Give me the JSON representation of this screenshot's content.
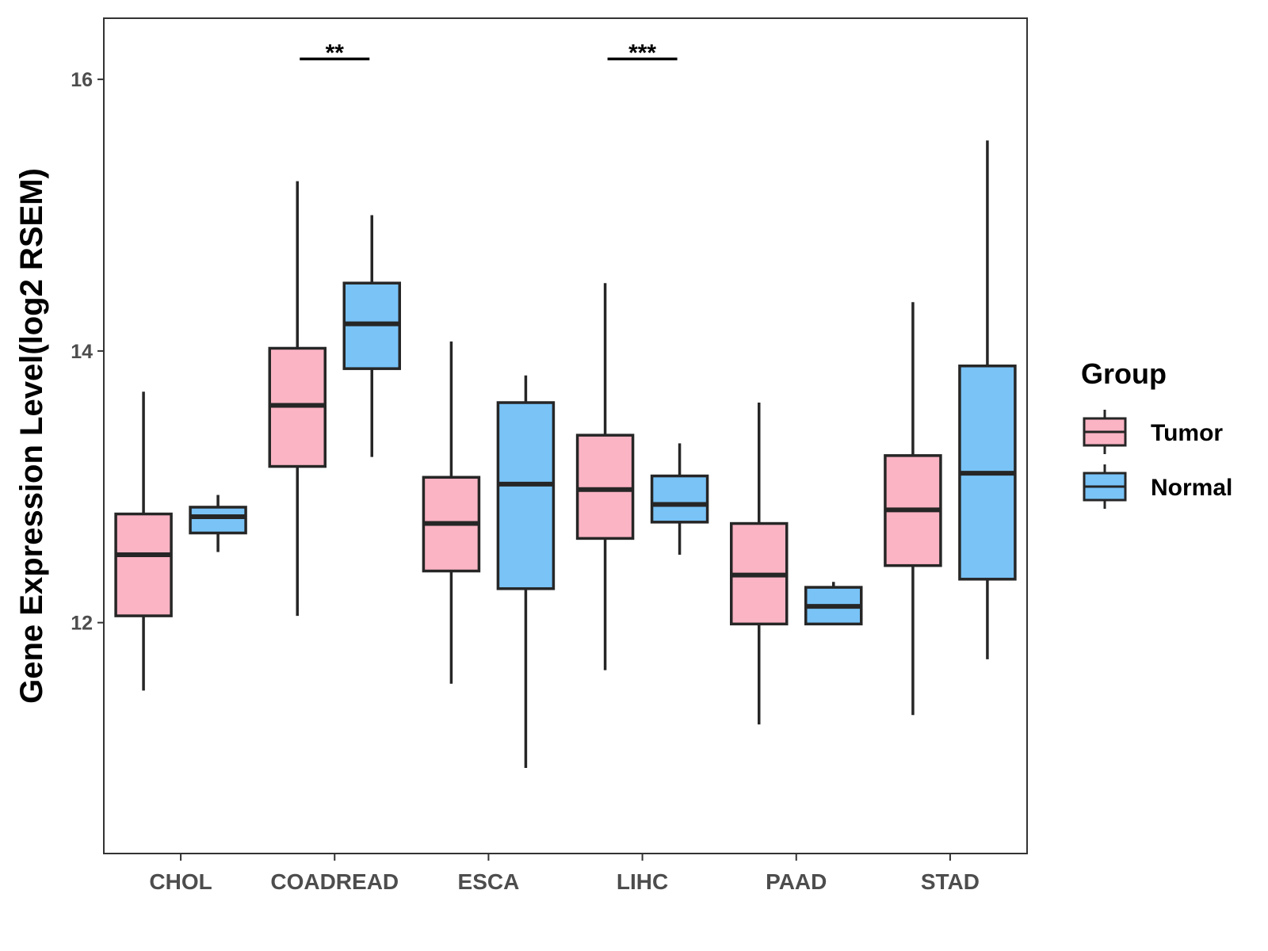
{
  "chart_data": {
    "type": "boxplot",
    "title": "",
    "xlabel": "",
    "ylabel": "Gene Expression Level(log2 RSEM)",
    "ylim": [
      10.3,
      16.45
    ],
    "yticks": [
      12,
      14,
      16
    ],
    "grid": false,
    "categories": [
      "CHOL",
      "COADREAD",
      "ESCA",
      "LIHC",
      "PAAD",
      "STAD"
    ],
    "legend": {
      "title": "Group",
      "position": "right",
      "entries": [
        {
          "name": "Tumor",
          "color": "#fbb4c4"
        },
        {
          "name": "Normal",
          "color": "#79c3f7"
        }
      ]
    },
    "series": [
      {
        "name": "Tumor",
        "color": "#fbb4c4",
        "boxes": [
          {
            "min": 11.5,
            "q1": 12.05,
            "median": 12.5,
            "q3": 12.8,
            "max": 13.7
          },
          {
            "min": 12.05,
            "q1": 13.15,
            "median": 13.6,
            "q3": 14.02,
            "max": 15.25
          },
          {
            "min": 11.55,
            "q1": 12.38,
            "median": 12.73,
            "q3": 13.07,
            "max": 14.07
          },
          {
            "min": 11.65,
            "q1": 12.62,
            "median": 12.98,
            "q3": 13.38,
            "max": 14.5
          },
          {
            "min": 11.25,
            "q1": 11.99,
            "median": 12.35,
            "q3": 12.73,
            "max": 13.62
          },
          {
            "min": 11.32,
            "q1": 12.42,
            "median": 12.83,
            "q3": 13.23,
            "max": 14.36
          }
        ]
      },
      {
        "name": "Normal",
        "color": "#79c3f7",
        "boxes": [
          {
            "min": 12.52,
            "q1": 12.66,
            "median": 12.78,
            "q3": 12.85,
            "max": 12.94
          },
          {
            "min": 13.22,
            "q1": 13.87,
            "median": 14.2,
            "q3": 14.5,
            "max": 15.0
          },
          {
            "min": 10.93,
            "q1": 12.25,
            "median": 13.02,
            "q3": 13.62,
            "max": 13.82
          },
          {
            "min": 12.5,
            "q1": 12.74,
            "median": 12.87,
            "q3": 13.08,
            "max": 13.32
          },
          {
            "min": 11.99,
            "q1": 11.99,
            "median": 12.12,
            "q3": 12.26,
            "max": 12.3
          },
          {
            "min": 11.73,
            "q1": 12.32,
            "median": 13.1,
            "q3": 13.89,
            "max": 15.55
          }
        ]
      }
    ],
    "significance": [
      {
        "category": "COADREAD",
        "label": "**",
        "y": 16.15
      },
      {
        "category": "LIHC",
        "label": "***",
        "y": 16.15
      }
    ]
  }
}
